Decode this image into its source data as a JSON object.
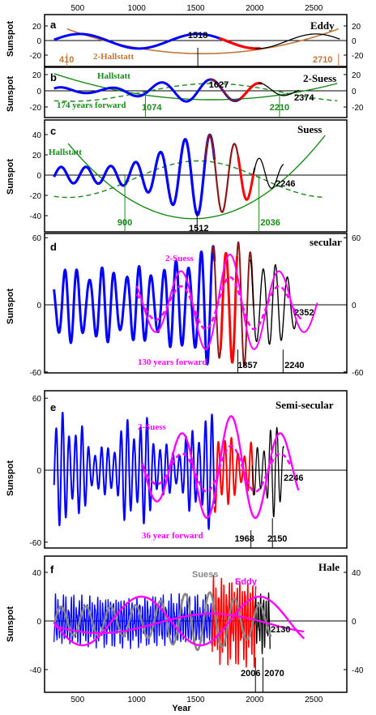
{
  "x_axis": {
    "xlim": [
      220,
      2780
    ],
    "top_ticks": [
      "500",
      "1000",
      "1500",
      "2000",
      "2500"
    ],
    "bottom_ticks": [
      "500",
      "1000",
      "1500",
      "2000",
      "2500"
    ],
    "xlabel": "Year"
  },
  "colors": {
    "observed": "#0000ff",
    "reconstruction": "#ff0000",
    "forecast": "#000000",
    "hallstatt": "#1a8a1a",
    "two_suess": "#ff00ff",
    "suess": "#888888",
    "eddy": "#ff00ff",
    "eddy_hallstatt": "#c07838",
    "hindcast": "#8b1a1a"
  },
  "panels": [
    {
      "letter": "a",
      "title": "Eddy",
      "ylabel": "Sunspot",
      "left_ticks": [
        "20",
        "0",
        "-20"
      ],
      "right_ticks": [
        "20",
        "0",
        "-20"
      ],
      "annotations": {
        "peak_year": "1518",
        "left_hall": "410",
        "hall_label": "2-Hallstatt",
        "right_hall": "2710"
      }
    },
    {
      "letter": "b",
      "title": "2-Suess",
      "ylabel": "Sunspot",
      "left_ticks": [
        "20",
        "0",
        "-20"
      ],
      "right_ticks": [
        "20",
        "0",
        "-20"
      ],
      "annotations": {
        "hall_label": "Hallstatt",
        "forward": "174 years forward",
        "y1074": "1074",
        "y1627": "1627",
        "y2210": "2210",
        "y2374": "2374"
      }
    },
    {
      "letter": "c",
      "title": "Suess",
      "ylabel": "Sunspot",
      "left_ticks": [
        "40",
        "20",
        "0",
        "-20",
        "-40"
      ],
      "right_ticks": [],
      "annotations": {
        "hall_label": "Hallstatt",
        "y900": "900",
        "y1512": "1512",
        "y2036": "2036",
        "y2246": "2246"
      }
    },
    {
      "letter": "d",
      "title": "secular",
      "ylabel": "Sunspot",
      "left_ticks": [
        "60",
        "0",
        "-60"
      ],
      "right_ticks": [
        "60",
        "0",
        "-60"
      ],
      "annotations": {
        "two_suess": "2-Suess",
        "forward": "130 years forward",
        "y1857": "1857",
        "y2240": "2240",
        "y2352": "2352"
      }
    },
    {
      "letter": "e",
      "title": "Semi-secular",
      "ylabel": "Sunspot",
      "left_ticks": [
        "60",
        "0",
        "-60"
      ],
      "right_ticks": [],
      "annotations": {
        "two_suess": "2-Suess",
        "forward": "36 year forward",
        "y1968": "1968",
        "y2150": "2150",
        "y2246": "2246"
      }
    },
    {
      "letter": "f",
      "title": "Hale",
      "ylabel": "Sunspot",
      "left_ticks": [
        "40",
        "0",
        "-40"
      ],
      "right_ticks": [
        "40",
        "0",
        "-40"
      ],
      "annotations": {
        "suess": "Suess",
        "eddy": "Eddy",
        "y2006": "2006",
        "y2070": "2070",
        "y2130": "2130"
      }
    }
  ],
  "chart_data": [
    {
      "type": "line",
      "panel": "a",
      "title": "Eddy",
      "ylabel": "Sunspot",
      "ylim": [
        -20,
        20
      ],
      "series": [
        {
          "period_years": 1000,
          "peak_year": 1518,
          "amplitude": 12,
          "range": [
            300,
            2750
          ]
        }
      ]
    },
    {
      "type": "line",
      "panel": "b",
      "title": "2-Suess",
      "ylabel": "Sunspot",
      "ylim": [
        -20,
        20
      ],
      "series": [
        {
          "period_years": 420,
          "peak_year": 1627,
          "amplitude": 16,
          "range": [
            300,
            2374
          ]
        }
      ]
    },
    {
      "type": "line",
      "panel": "c",
      "title": "Suess",
      "ylabel": "Sunspot",
      "ylim": [
        -40,
        40
      ],
      "series": [
        {
          "period_years": 210,
          "peak_year": 1620,
          "amplitude_max": 45,
          "range": [
            300,
            2246
          ]
        }
      ]
    },
    {
      "type": "line",
      "panel": "d",
      "title": "secular",
      "ylabel": "Sunspot",
      "ylim": [
        -60,
        60
      ],
      "series": [
        {
          "period_years": 105,
          "amplitude_max": 55,
          "range": [
            300,
            2352
          ]
        }
      ]
    },
    {
      "type": "line",
      "panel": "e",
      "title": "Semi-secular",
      "ylabel": "Sunspot",
      "ylim": [
        -60,
        60
      ],
      "series": [
        {
          "period_years": 55,
          "amplitude_max": 60,
          "range": [
            300,
            2246
          ]
        }
      ]
    },
    {
      "type": "line",
      "panel": "f",
      "title": "Hale",
      "ylabel": "Sunspot",
      "ylim": [
        -40,
        40
      ],
      "series": [
        {
          "period_years": 22,
          "amplitude_max": 30,
          "range": [
            300,
            2130
          ]
        }
      ]
    }
  ]
}
